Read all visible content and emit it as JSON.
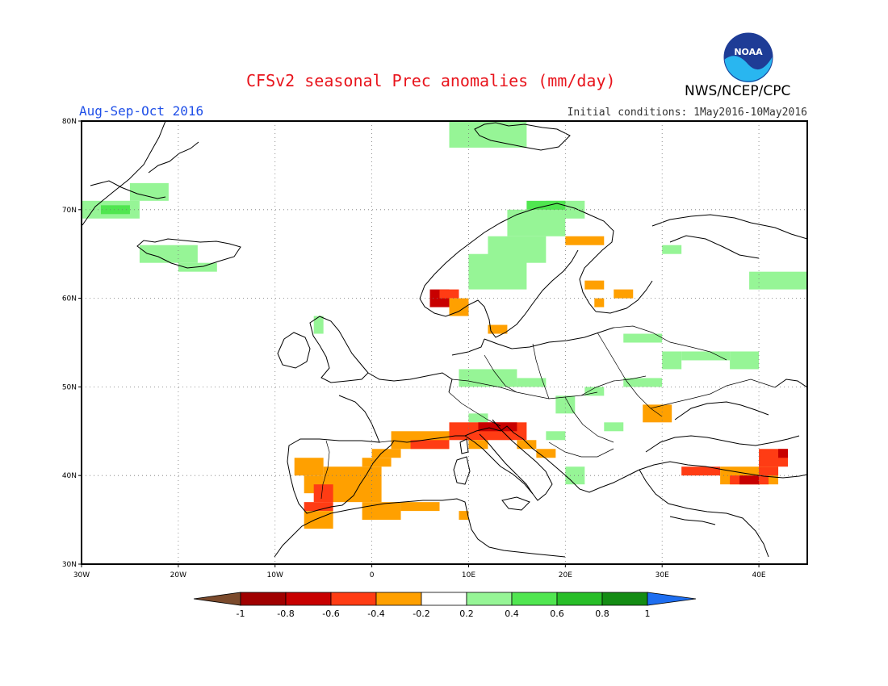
{
  "header": {
    "title": "CFSv2 seasonal Prec anomalies (mm/day)",
    "season": "Aug-Sep-Oct 2016",
    "initial_conditions": "Initial conditions: 1May2016-10May2016",
    "agency": "NWS/NCEP/CPC",
    "logo_icon": "noaa-logo-icon",
    "logo_text": "NOAA"
  },
  "map": {
    "region": "Europe",
    "lon_range": [
      -30,
      45
    ],
    "lat_range": [
      30,
      80
    ],
    "lat_labels": [
      "30N",
      "40N",
      "50N",
      "60N",
      "70N",
      "80N"
    ],
    "lon_labels": [
      "30W",
      "20W",
      "10W",
      "0",
      "10E",
      "20E",
      "30E",
      "40E"
    ],
    "grid": "dotted",
    "colors": {
      "pos02": "#96f596",
      "neg02": "#ffa000",
      "neg04": "#ff3c14",
      "neg06": "#c80000"
    },
    "anomaly_cells": [
      {
        "lon": [
          -25,
          -21
        ],
        "lat": [
          71,
          73
        ],
        "c": "pos02"
      },
      {
        "lon": [
          -30,
          -24
        ],
        "lat": [
          69,
          71
        ],
        "c": "pos02"
      },
      {
        "lon": [
          -28,
          -25
        ],
        "lat": [
          69.5,
          70.5
        ],
        "c": "pos04"
      },
      {
        "lon": [
          -24,
          -18
        ],
        "lat": [
          64,
          66
        ],
        "c": "pos02"
      },
      {
        "lon": [
          -20,
          -16
        ],
        "lat": [
          63,
          64
        ],
        "c": "pos02"
      },
      {
        "lon": [
          8,
          16
        ],
        "lat": [
          77,
          80
        ],
        "c": "pos02"
      },
      {
        "lon": [
          10,
          16
        ],
        "lat": [
          61,
          65
        ],
        "c": "pos02"
      },
      {
        "lon": [
          12,
          18
        ],
        "lat": [
          64,
          67
        ],
        "c": "pos02"
      },
      {
        "lon": [
          14,
          20
        ],
        "lat": [
          67,
          70
        ],
        "c": "pos02"
      },
      {
        "lon": [
          18,
          22
        ],
        "lat": [
          69,
          71
        ],
        "c": "pos02"
      },
      {
        "lon": [
          16,
          20
        ],
        "lat": [
          70,
          71
        ],
        "c": "pos04"
      },
      {
        "lon": [
          6,
          8
        ],
        "lat": [
          59,
          61
        ],
        "c": "neg06"
      },
      {
        "lon": [
          7,
          9
        ],
        "lat": [
          60,
          61
        ],
        "c": "neg04"
      },
      {
        "lon": [
          8,
          10
        ],
        "lat": [
          58,
          60
        ],
        "c": "neg02"
      },
      {
        "lon": [
          12,
          14
        ],
        "lat": [
          56,
          57
        ],
        "c": "neg02"
      },
      {
        "lon": [
          20,
          24
        ],
        "lat": [
          66,
          67
        ],
        "c": "neg02"
      },
      {
        "lon": [
          22,
          24
        ],
        "lat": [
          61,
          62
        ],
        "c": "neg02"
      },
      {
        "lon": [
          25,
          27
        ],
        "lat": [
          60,
          61
        ],
        "c": "neg02"
      },
      {
        "lon": [
          23,
          24
        ],
        "lat": [
          59,
          60
        ],
        "c": "neg02"
      },
      {
        "lon": [
          -6,
          -5
        ],
        "lat": [
          56,
          58
        ],
        "c": "pos02"
      },
      {
        "lon": [
          26,
          30
        ],
        "lat": [
          55,
          56
        ],
        "c": "pos02"
      },
      {
        "lon": [
          30,
          32
        ],
        "lat": [
          65,
          66
        ],
        "c": "pos02"
      },
      {
        "lon": [
          39,
          46
        ],
        "lat": [
          61,
          63
        ],
        "c": "pos02"
      },
      {
        "lon": [
          30,
          32
        ],
        "lat": [
          52,
          54
        ],
        "c": "pos02"
      },
      {
        "lon": [
          32,
          37
        ],
        "lat": [
          53,
          54
        ],
        "c": "pos02"
      },
      {
        "lon": [
          37,
          40
        ],
        "lat": [
          52,
          54
        ],
        "c": "pos02"
      },
      {
        "lon": [
          9,
          15
        ],
        "lat": [
          50,
          52
        ],
        "c": "pos02"
      },
      {
        "lon": [
          15,
          18
        ],
        "lat": [
          50,
          51
        ],
        "c": "pos02"
      },
      {
        "lon": [
          26,
          30
        ],
        "lat": [
          50,
          51
        ],
        "c": "pos02"
      },
      {
        "lon": [
          22,
          24
        ],
        "lat": [
          49,
          50
        ],
        "c": "pos02"
      },
      {
        "lon": [
          19,
          21
        ],
        "lat": [
          47,
          49
        ],
        "c": "pos02"
      },
      {
        "lon": [
          24,
          26
        ],
        "lat": [
          45,
          46
        ],
        "c": "pos02"
      },
      {
        "lon": [
          18,
          20
        ],
        "lat": [
          44,
          45
        ],
        "c": "pos02"
      },
      {
        "lon": [
          10,
          12
        ],
        "lat": [
          46,
          47
        ],
        "c": "pos02"
      },
      {
        "lon": [
          20,
          22
        ],
        "lat": [
          39,
          41
        ],
        "c": "pos02"
      },
      {
        "lon": [
          -8,
          -5
        ],
        "lat": [
          40,
          42
        ],
        "c": "neg02"
      },
      {
        "lon": [
          -7,
          -5
        ],
        "lat": [
          38,
          40
        ],
        "c": "neg02"
      },
      {
        "lon": [
          -5,
          1
        ],
        "lat": [
          37,
          41
        ],
        "c": "neg02"
      },
      {
        "lon": [
          -1,
          2
        ],
        "lat": [
          41,
          42
        ],
        "c": "neg02"
      },
      {
        "lon": [
          0,
          3
        ],
        "lat": [
          42,
          43
        ],
        "c": "neg02"
      },
      {
        "lon": [
          -6,
          -4
        ],
        "lat": [
          37,
          39
        ],
        "c": "neg04"
      },
      {
        "lon": [
          -7,
          -4
        ],
        "lat": [
          36,
          37
        ],
        "c": "neg04"
      },
      {
        "lon": [
          -7,
          -4
        ],
        "lat": [
          34,
          36
        ],
        "c": "neg02"
      },
      {
        "lon": [
          -1,
          3
        ],
        "lat": [
          35,
          37
        ],
        "c": "neg02"
      },
      {
        "lon": [
          3,
          7
        ],
        "lat": [
          36,
          37
        ],
        "c": "neg02"
      },
      {
        "lon": [
          9,
          10
        ],
        "lat": [
          35,
          36
        ],
        "c": "neg02"
      },
      {
        "lon": [
          2,
          8
        ],
        "lat": [
          43,
          45
        ],
        "c": "neg02"
      },
      {
        "lon": [
          4,
          8
        ],
        "lat": [
          43,
          44
        ],
        "c": "neg04"
      },
      {
        "lon": [
          8,
          16
        ],
        "lat": [
          44,
          46
        ],
        "c": "neg04"
      },
      {
        "lon": [
          11,
          15
        ],
        "lat": [
          45,
          46
        ],
        "c": "neg06"
      },
      {
        "lon": [
          10,
          12
        ],
        "lat": [
          43,
          44
        ],
        "c": "neg02"
      },
      {
        "lon": [
          15,
          17
        ],
        "lat": [
          43,
          44
        ],
        "c": "neg02"
      },
      {
        "lon": [
          17,
          19
        ],
        "lat": [
          42,
          43
        ],
        "c": "neg02"
      },
      {
        "lon": [
          28,
          31
        ],
        "lat": [
          46,
          48
        ],
        "c": "neg02"
      },
      {
        "lon": [
          40,
          43
        ],
        "lat": [
          41,
          43
        ],
        "c": "neg04"
      },
      {
        "lon": [
          42,
          43
        ],
        "lat": [
          42,
          43
        ],
        "c": "neg06"
      },
      {
        "lon": [
          32,
          36
        ],
        "lat": [
          40,
          41
        ],
        "c": "neg04"
      },
      {
        "lon": [
          36,
          42
        ],
        "lat": [
          39,
          41
        ],
        "c": "neg02"
      },
      {
        "lon": [
          37,
          41
        ],
        "lat": [
          39,
          40
        ],
        "c": "neg04"
      },
      {
        "lon": [
          38,
          40
        ],
        "lat": [
          39,
          40
        ],
        "c": "neg06"
      },
      {
        "lon": [
          40,
          42
        ],
        "lat": [
          40,
          41
        ],
        "c": "neg04"
      }
    ]
  },
  "legend": {
    "labels": [
      "-1",
      "-0.8",
      "-0.6",
      "-0.4",
      "-0.2",
      "0.2",
      "0.4",
      "0.6",
      "0.8",
      "1"
    ],
    "segments": [
      {
        "name": "lt-1",
        "color": "#7b4a2c"
      },
      {
        "name": "-1..-0.8",
        "color": "#a00000"
      },
      {
        "name": "-0.8..-0.6",
        "color": "#c80000"
      },
      {
        "name": "-0.6..-0.4",
        "color": "#ff3c14"
      },
      {
        "name": "-0.4..-0.2",
        "color": "#ffa000"
      },
      {
        "name": "-0.2..0.2",
        "color": "#ffffff"
      },
      {
        "name": "0.2..0.4",
        "color": "#96f596"
      },
      {
        "name": "0.4..0.6",
        "color": "#50e650"
      },
      {
        "name": "0.6..0.8",
        "color": "#28be28"
      },
      {
        "name": "0.8..1",
        "color": "#148c14"
      },
      {
        "name": "gt1",
        "color": "#1e6ef0"
      }
    ]
  }
}
